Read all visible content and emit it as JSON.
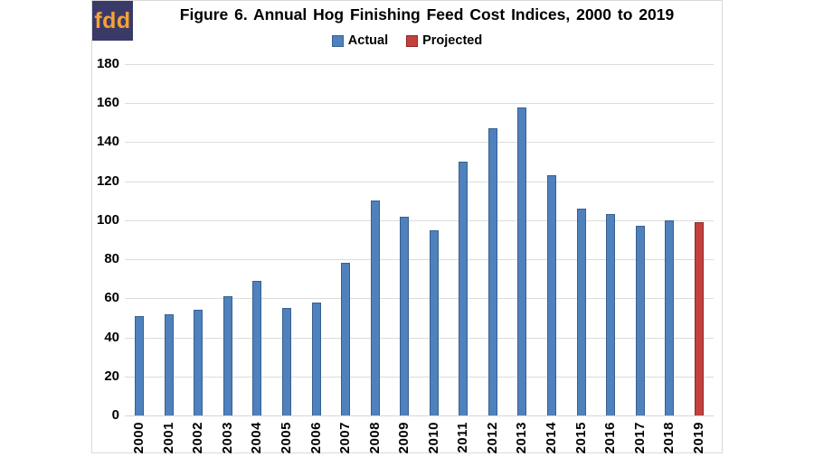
{
  "logo": {
    "text": "fdd",
    "bg_color": "#3a3a68",
    "fg_color": "#f6a233"
  },
  "title": "Figure 6. Annual Hog Finishing Feed Cost Indices, 2000 to 2019",
  "legend": [
    {
      "label": "Actual",
      "fill": "#4f81bd",
      "border": "#37608f"
    },
    {
      "label": "Projected",
      "fill": "#c2413d",
      "border": "#8e2a26"
    }
  ],
  "chart_data": {
    "type": "bar",
    "title": "Figure 6. Annual Hog Finishing Feed Cost Indices, 2000 to 2019",
    "categories": [
      "2000",
      "2001",
      "2002",
      "2003",
      "2004",
      "2005",
      "2006",
      "2007",
      "2008",
      "2009",
      "2010",
      "2011",
      "2012",
      "2013",
      "2014",
      "2015",
      "2016",
      "2017",
      "2018",
      "2019"
    ],
    "values": [
      51,
      52,
      54,
      61,
      69,
      55,
      58,
      78,
      110,
      102,
      95,
      130,
      147,
      158,
      123,
      106,
      103,
      97,
      100,
      99
    ],
    "bar_series": [
      "Actual",
      "Actual",
      "Actual",
      "Actual",
      "Actual",
      "Actual",
      "Actual",
      "Actual",
      "Actual",
      "Actual",
      "Actual",
      "Actual",
      "Actual",
      "Actual",
      "Actual",
      "Actual",
      "Actual",
      "Actual",
      "Actual",
      "Projected"
    ],
    "xlabel": "",
    "ylabel": "",
    "ylim": [
      0,
      180
    ],
    "ytick_step": 20,
    "grid": true,
    "legend_position": "top",
    "colors": {
      "Actual": "#4f81bd",
      "Projected": "#c2413d"
    },
    "bar_borders": {
      "Actual": "#37608f",
      "Projected": "#8e2a26"
    }
  }
}
